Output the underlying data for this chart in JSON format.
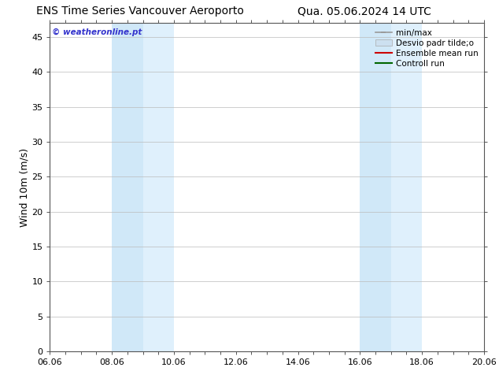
{
  "title_left": "ENS Time Series Vancouver Aeroporto",
  "title_right": "Qua. 05.06.2024 14 UTC",
  "ylabel": "Wind 10m (m/s)",
  "watermark": "© weatheronline.pt",
  "x_ticks": [
    "06.06",
    "08.06",
    "10.06",
    "12.06",
    "14.06",
    "16.06",
    "18.06",
    "20.06"
  ],
  "x_tick_positions": [
    0,
    2,
    4,
    6,
    8,
    10,
    12,
    14
  ],
  "ylim": [
    0,
    47
  ],
  "y_ticks": [
    0,
    5,
    10,
    15,
    20,
    25,
    30,
    35,
    40,
    45
  ],
  "shade_bands": [
    {
      "x_start": 2.0,
      "x_end": 3.0,
      "color": "#d0e8f8"
    },
    {
      "x_start": 3.0,
      "x_end": 4.0,
      "color": "#dff0fc"
    },
    {
      "x_start": 10.0,
      "x_end": 11.0,
      "color": "#d0e8f8"
    },
    {
      "x_start": 11.0,
      "x_end": 12.0,
      "color": "#dff0fc"
    }
  ],
  "legend_entries": [
    {
      "label": "min/max",
      "color": "#999999",
      "style": "minmax"
    },
    {
      "label": "Desvio padr tilde;o",
      "color": "#cce0f0",
      "style": "bar"
    },
    {
      "label": "Ensemble mean run",
      "color": "#cc0000",
      "style": "line"
    },
    {
      "label": "Controll run",
      "color": "#006600",
      "style": "line"
    }
  ],
  "bg_color": "#ffffff",
  "plot_bg_color": "#ffffff",
  "grid_color": "#bbbbbb",
  "watermark_color": "#3333cc",
  "title_fontsize": 10,
  "tick_fontsize": 8,
  "ylabel_fontsize": 9,
  "legend_fontsize": 7.5
}
